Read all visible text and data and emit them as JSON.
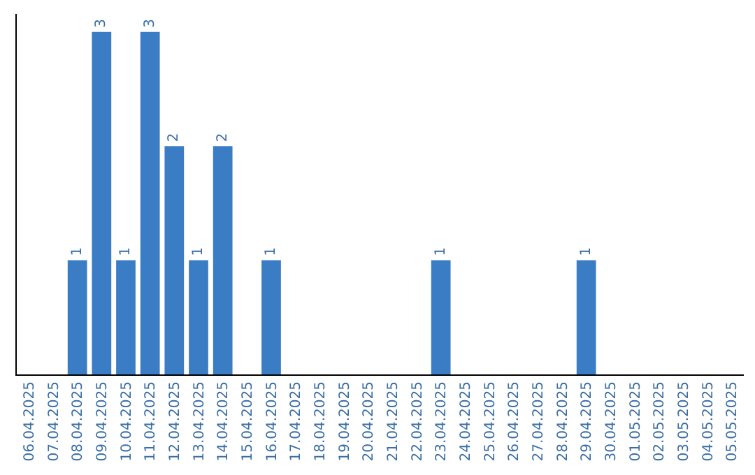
{
  "chart_data": {
    "type": "bar",
    "categories": [
      "06.04.2025",
      "07.04.2025",
      "08.04.2025",
      "09.04.2025",
      "10.04.2025",
      "11.04.2025",
      "12.04.2025",
      "13.04.2025",
      "14.04.2025",
      "15.04.2025",
      "16.04.2025",
      "17.04.2025",
      "18.04.2025",
      "19.04.2025",
      "20.04.2025",
      "21.04.2025",
      "22.04.2025",
      "23.04.2025",
      "24.04.2025",
      "25.04.2025",
      "26.04.2025",
      "27.04.2025",
      "28.04.2025",
      "29.04.2025",
      "30.04.2025",
      "01.05.2025",
      "02.05.2025",
      "03.05.2025",
      "04.05.2025",
      "05.05.2025"
    ],
    "values": [
      0,
      0,
      1,
      3,
      1,
      3,
      2,
      1,
      2,
      0,
      1,
      0,
      0,
      0,
      0,
      0,
      0,
      1,
      0,
      0,
      0,
      0,
      0,
      1,
      0,
      0,
      0,
      0,
      0,
      0
    ],
    "value_labels": [
      null,
      null,
      "1",
      "3",
      "1",
      "3",
      "2",
      "1",
      "2",
      null,
      "1",
      null,
      null,
      null,
      null,
      null,
      null,
      "1",
      null,
      null,
      null,
      null,
      null,
      "1",
      null,
      null,
      null,
      null,
      null,
      null
    ],
    "color": "#3b7dc4",
    "tick_labels": "x",
    "legend": false
  }
}
